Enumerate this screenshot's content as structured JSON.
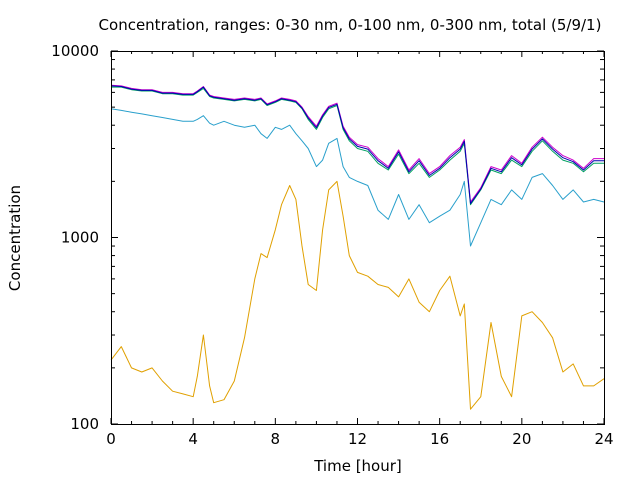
{
  "chart_data": {
    "type": "line",
    "title": "Concentration, ranges: 0-30 nm, 0-100 nm, 0-300 nm, total (5/9/1)",
    "xlabel": "Time [hour]",
    "ylabel": "Concentration",
    "xlim": [
      0,
      24
    ],
    "ylim": [
      100,
      10000
    ],
    "yscale": "log",
    "grid": false,
    "legend": "none",
    "x_ticks": [
      0,
      4,
      8,
      12,
      16,
      20,
      24
    ],
    "x_tick_labels": [
      "0",
      "4",
      "8",
      "12",
      "16",
      "20",
      "24"
    ],
    "y_ticks": [
      100,
      1000,
      10000
    ],
    "y_tick_labels": [
      "100",
      "1000",
      "10000"
    ],
    "x": [
      0,
      0.5,
      1,
      1.5,
      2,
      2.5,
      3,
      3.5,
      4,
      4.2,
      4.5,
      4.8,
      5,
      5.5,
      6,
      6.5,
      7,
      7.3,
      7.6,
      8,
      8.3,
      8.7,
      9,
      9.3,
      9.6,
      10,
      10.3,
      10.6,
      11,
      11.3,
      11.6,
      12,
      12.5,
      13,
      13.5,
      14,
      14.5,
      15,
      15.5,
      16,
      16.5,
      17,
      17.2,
      17.5,
      18,
      18.5,
      19,
      19.5,
      20,
      20.5,
      21,
      21.5,
      22,
      22.5,
      23,
      23.5,
      24
    ],
    "series": [
      {
        "color": "#e0a000",
        "values": [
          220,
          260,
          200,
          190,
          200,
          170,
          150,
          145,
          140,
          180,
          300,
          160,
          130,
          135,
          170,
          290,
          600,
          820,
          780,
          1100,
          1500,
          1900,
          1600,
          900,
          560,
          520,
          1100,
          1800,
          2000,
          1300,
          800,
          650,
          620,
          560,
          540,
          480,
          600,
          450,
          400,
          520,
          620,
          380,
          440,
          120,
          140,
          350,
          180,
          140,
          380,
          400,
          350,
          290,
          190,
          210,
          160,
          160,
          175
        ]
      },
      {
        "color": "#2aa0cc",
        "values": [
          4900,
          4800,
          4700,
          4600,
          4500,
          4400,
          4300,
          4200,
          4200,
          4300,
          4500,
          4100,
          4000,
          4200,
          4000,
          3900,
          4000,
          3600,
          3400,
          3900,
          3800,
          4000,
          3600,
          3300,
          3000,
          2400,
          2600,
          3200,
          3400,
          2400,
          2100,
          2000,
          1900,
          1400,
          1250,
          1700,
          1250,
          1500,
          1200,
          1300,
          1400,
          1700,
          2000,
          900,
          1200,
          1600,
          1500,
          1800,
          1600,
          2100,
          2200,
          1900,
          1600,
          1800,
          1550,
          1600,
          1550
        ]
      },
      {
        "color": "#00a060",
        "values": [
          6400,
          6400,
          6200,
          6100,
          6100,
          5900,
          5900,
          5800,
          5800,
          6000,
          6300,
          5700,
          5600,
          5500,
          5400,
          5500,
          5400,
          5500,
          5100,
          5300,
          5500,
          5400,
          5300,
          4900,
          4300,
          3800,
          4400,
          4900,
          5100,
          3800,
          3300,
          3000,
          2900,
          2500,
          2300,
          2800,
          2200,
          2500,
          2100,
          2300,
          2600,
          2900,
          3200,
          1500,
          1800,
          2300,
          2200,
          2600,
          2400,
          2900,
          3300,
          2900,
          2600,
          2500,
          2250,
          2500,
          2500
        ]
      },
      {
        "color": "#cc00cc",
        "values": [
          6550,
          6500,
          6300,
          6200,
          6200,
          6000,
          6000,
          5900,
          5900,
          6100,
          6450,
          5800,
          5700,
          5600,
          5500,
          5600,
          5500,
          5600,
          5200,
          5400,
          5600,
          5500,
          5400,
          5000,
          4450,
          3950,
          4550,
          5050,
          5250,
          3950,
          3450,
          3150,
          3050,
          2650,
          2400,
          2950,
          2300,
          2650,
          2200,
          2400,
          2750,
          3050,
          3350,
          1550,
          1850,
          2400,
          2300,
          2750,
          2500,
          3050,
          3450,
          3050,
          2750,
          2600,
          2350,
          2650,
          2650
        ]
      },
      {
        "color": "#0000b0",
        "values": [
          6500,
          6450,
          6250,
          6150,
          6150,
          5950,
          5950,
          5850,
          5850,
          6050,
          6400,
          5750,
          5650,
          5550,
          5450,
          5550,
          5450,
          5550,
          5150,
          5350,
          5550,
          5450,
          5350,
          4950,
          4380,
          3880,
          4480,
          4980,
          5180,
          3880,
          3380,
          3080,
          2980,
          2580,
          2350,
          2880,
          2250,
          2580,
          2150,
          2350,
          2680,
          2980,
          3280,
          1520,
          1820,
          2350,
          2250,
          2680,
          2450,
          2980,
          3380,
          2980,
          2680,
          2550,
          2300,
          2580,
          2580
        ]
      }
    ]
  }
}
